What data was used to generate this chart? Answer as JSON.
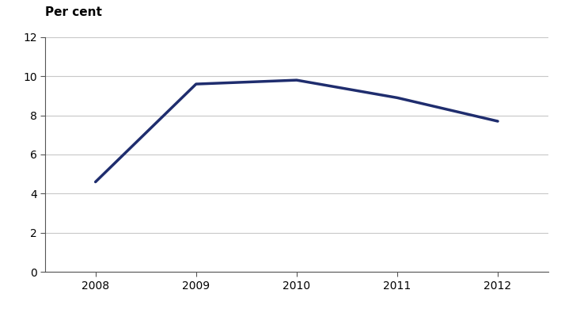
{
  "years": [
    2008,
    2009,
    2010,
    2011,
    2012
  ],
  "values": [
    4.6,
    9.6,
    9.8,
    8.9,
    7.7
  ],
  "line_color": "#1f2d6e",
  "line_width": 2.5,
  "ylabel": "Per cent",
  "ylim": [
    0,
    12
  ],
  "yticks": [
    0,
    2,
    4,
    6,
    8,
    10,
    12
  ],
  "xlim": [
    2007.5,
    2012.5
  ],
  "xticks": [
    2008,
    2009,
    2010,
    2011,
    2012
  ],
  "grid_color": "#c8c8c8",
  "background_color": "#ffffff",
  "ylabel_fontsize": 11,
  "tick_fontsize": 10,
  "spine_color": "#555555"
}
